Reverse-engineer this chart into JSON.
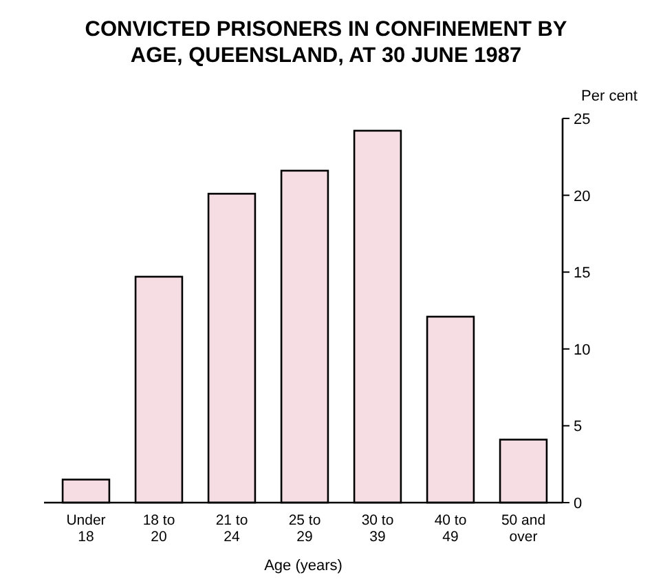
{
  "chart_data": {
    "type": "bar",
    "title": "CONVICTED PRISONERS IN CONFINEMENT BY AGE, QUEENSLAND, AT 30 JUNE 1987",
    "xlabel": "Age (years)",
    "ylabel": "Per cent",
    "categories": [
      "Under 18",
      "18 to 20",
      "21 to 24",
      "25 to 29",
      "30 to 39",
      "40 to 49",
      "50 and over"
    ],
    "values": [
      1.5,
      14.7,
      20.1,
      21.6,
      24.2,
      12.1,
      4.1
    ],
    "color": "#f5dde3",
    "ylim": [
      0,
      25
    ],
    "yticks": [
      0,
      5,
      10,
      15,
      20,
      25
    ],
    "grid": false
  }
}
